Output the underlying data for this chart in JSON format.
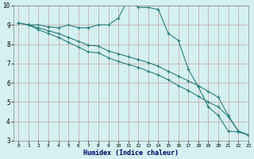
{
  "xlabel": "Humidex (Indice chaleur)",
  "x": [
    0,
    1,
    2,
    3,
    4,
    5,
    6,
    7,
    8,
    9,
    10,
    11,
    12,
    13,
    14,
    15,
    16,
    17,
    18,
    19,
    20,
    21,
    22,
    23
  ],
  "line1": [
    9.1,
    9.0,
    9.0,
    8.9,
    8.85,
    9.0,
    8.85,
    8.85,
    9.0,
    9.0,
    9.35,
    10.35,
    9.9,
    9.9,
    9.8,
    8.55,
    8.2,
    6.7,
    5.8,
    4.75,
    4.3,
    3.5,
    3.45,
    3.3
  ],
  "line2": [
    9.1,
    9.0,
    8.85,
    8.7,
    8.55,
    8.35,
    8.15,
    7.95,
    7.9,
    7.65,
    7.5,
    7.35,
    7.2,
    7.05,
    6.85,
    6.6,
    6.35,
    6.1,
    5.85,
    5.55,
    5.25,
    4.3,
    3.5,
    3.3
  ],
  "line3": [
    9.1,
    9.0,
    8.75,
    8.55,
    8.35,
    8.1,
    7.85,
    7.6,
    7.55,
    7.3,
    7.1,
    6.95,
    6.8,
    6.6,
    6.4,
    6.15,
    5.85,
    5.6,
    5.3,
    5.0,
    4.75,
    4.25,
    3.5,
    3.3
  ],
  "color": "#2d7d7d",
  "bg_color": "#d4f0f0",
  "grid_color_major": "#c8a0a0",
  "ylim": [
    3,
    10
  ],
  "xlim": [
    -0.5,
    23
  ],
  "yticks": [
    3,
    4,
    5,
    6,
    7,
    8,
    9,
    10
  ],
  "xticks": [
    0,
    1,
    2,
    3,
    4,
    5,
    6,
    7,
    8,
    9,
    10,
    11,
    12,
    13,
    14,
    15,
    16,
    17,
    18,
    19,
    20,
    21,
    22,
    23
  ]
}
